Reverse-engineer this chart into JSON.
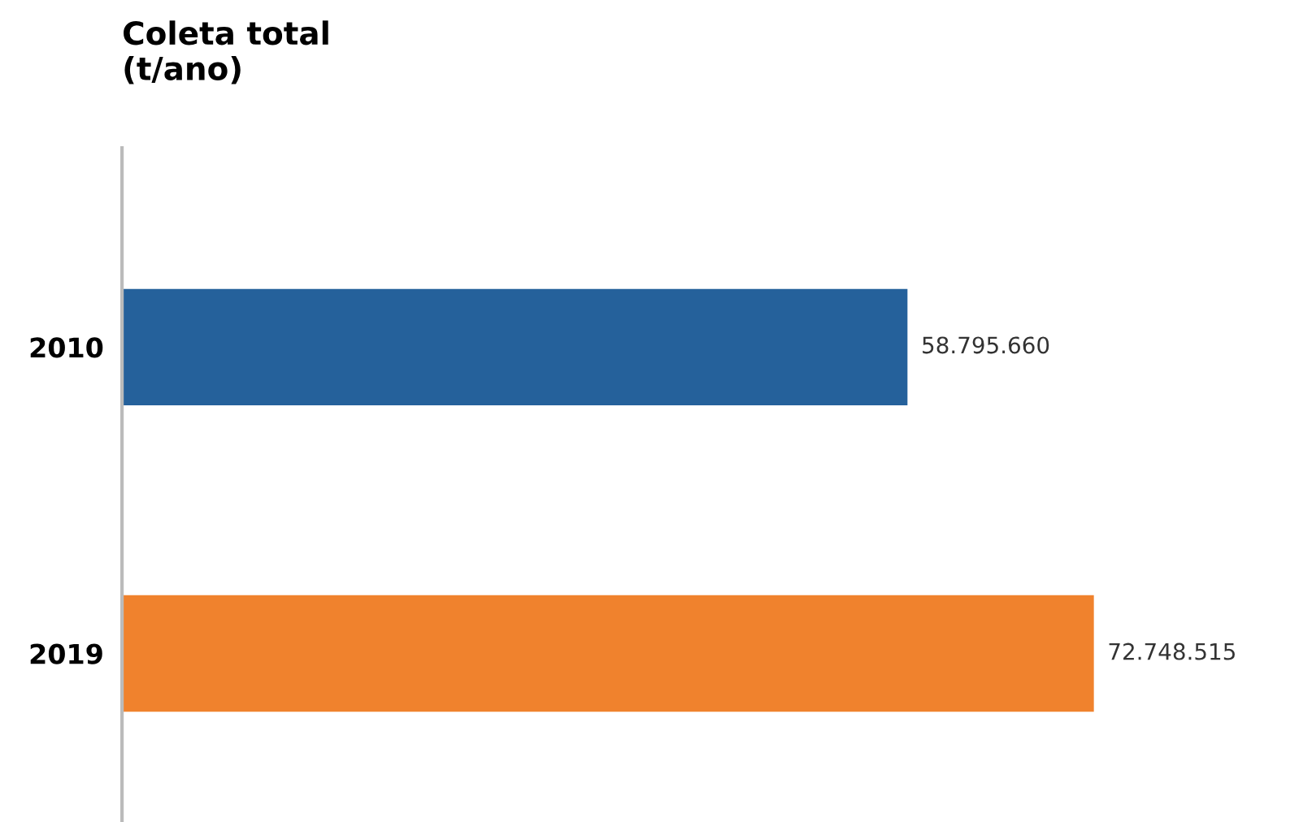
{
  "chart_data": {
    "type": "bar",
    "orientation": "horizontal",
    "title": "Coleta total\n(t/ano)",
    "categories": [
      "2010",
      "2019"
    ],
    "values": [
      58795660,
      72748515
    ],
    "colors": [
      "#25619b",
      "#f0822d"
    ],
    "value_labels": [
      "58.795.660",
      "72.748.515"
    ],
    "grid": false,
    "legend": false
  }
}
